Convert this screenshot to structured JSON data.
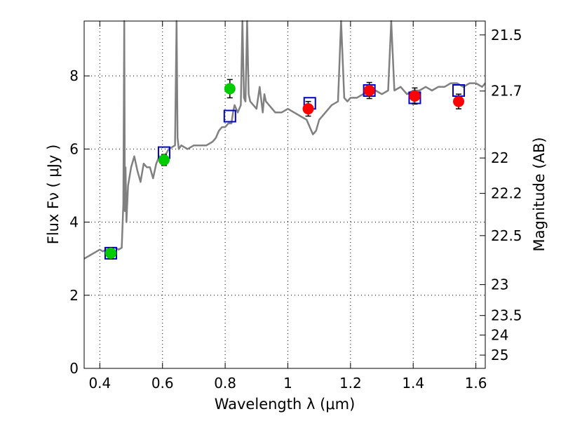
{
  "chart_data": {
    "type": "scatter",
    "xlabel": "Wavelength  λ (μm)",
    "ylabel": "Flux  Fν  ( μJy )",
    "y2label": "Magnitude (AB)",
    "xlim": [
      0.35,
      1.63
    ],
    "ylim": [
      0,
      9.5
    ],
    "grid": true,
    "x_ticks": [
      0.4,
      0.6,
      0.8,
      1.0,
      1.2,
      1.4,
      1.6
    ],
    "x_tick_labels": [
      "0.4",
      "0.6",
      "0.8",
      "1",
      "1.2",
      "1.4",
      "1.6"
    ],
    "y_ticks": [
      0,
      2,
      4,
      6,
      8
    ],
    "y_tick_labels": [
      "0",
      "2",
      "4",
      "6",
      "8"
    ],
    "y2_tick_labels": [
      "21.5",
      "21.7",
      "22",
      "22.2",
      "22.5",
      "23",
      "23.5",
      "24",
      "25"
    ],
    "colors": {
      "model": "#808080",
      "template_box": "#0000cc",
      "optical": "#00cc00",
      "nir": "#ff0000",
      "errorbar": "#000000"
    },
    "model_spectrum": {
      "x": [
        0.35,
        0.36,
        0.37,
        0.38,
        0.39,
        0.4,
        0.41,
        0.42,
        0.43,
        0.44,
        0.45,
        0.46,
        0.47,
        0.475,
        0.478,
        0.48,
        0.482,
        0.485,
        0.49,
        0.5,
        0.51,
        0.52,
        0.53,
        0.54,
        0.55,
        0.56,
        0.57,
        0.58,
        0.59,
        0.6,
        0.62,
        0.64,
        0.645,
        0.648,
        0.652,
        0.66,
        0.68,
        0.7,
        0.72,
        0.74,
        0.76,
        0.77,
        0.78,
        0.79,
        0.8,
        0.81,
        0.82,
        0.825,
        0.83,
        0.84,
        0.85,
        0.855,
        0.86,
        0.865,
        0.87,
        0.875,
        0.88,
        0.89,
        0.9,
        0.91,
        0.92,
        0.925,
        0.93,
        0.94,
        0.95,
        0.96,
        0.98,
        1.0,
        1.02,
        1.04,
        1.06,
        1.08,
        1.09,
        1.1,
        1.12,
        1.14,
        1.16,
        1.17,
        1.18,
        1.19,
        1.2,
        1.22,
        1.24,
        1.26,
        1.28,
        1.3,
        1.32,
        1.33,
        1.34,
        1.36,
        1.38,
        1.4,
        1.42,
        1.44,
        1.46,
        1.48,
        1.5,
        1.52,
        1.54,
        1.56,
        1.58,
        1.6,
        1.62,
        1.63
      ],
      "y": [
        3.0,
        3.05,
        3.1,
        3.15,
        3.2,
        3.25,
        3.2,
        3.25,
        3.25,
        3.3,
        3.3,
        3.25,
        3.3,
        4.5,
        9.5,
        4.3,
        5.5,
        4.0,
        5.0,
        5.5,
        5.8,
        5.4,
        5.1,
        5.6,
        5.5,
        5.5,
        5.2,
        5.6,
        5.8,
        5.7,
        6.0,
        6.1,
        9.5,
        6.3,
        6.0,
        6.1,
        6.0,
        6.1,
        6.1,
        6.1,
        6.2,
        6.3,
        6.5,
        6.6,
        6.6,
        6.7,
        6.7,
        7.0,
        7.2,
        7.0,
        7.2,
        9.5,
        7.4,
        7.3,
        9.5,
        7.5,
        7.3,
        7.2,
        7.1,
        7.7,
        7.0,
        7.5,
        7.3,
        7.2,
        7.1,
        7.0,
        7.0,
        7.1,
        7.0,
        6.9,
        6.8,
        6.4,
        6.5,
        6.8,
        7.0,
        7.2,
        7.3,
        9.5,
        7.4,
        7.3,
        7.4,
        7.4,
        7.5,
        7.5,
        7.6,
        7.5,
        7.6,
        9.5,
        7.6,
        7.7,
        7.5,
        7.6,
        7.6,
        7.7,
        7.6,
        7.7,
        7.7,
        7.8,
        7.8,
        7.7,
        7.8,
        7.8,
        7.7,
        7.8
      ]
    },
    "series": [
      {
        "name": "model_photometry",
        "marker": "square",
        "x": [
          0.435,
          0.605,
          0.815,
          1.07,
          1.26,
          1.405,
          1.545
        ],
        "y": [
          3.15,
          5.9,
          6.9,
          7.25,
          7.6,
          7.4,
          7.6
        ]
      },
      {
        "name": "optical_observed",
        "marker": "circle",
        "x": [
          0.435,
          0.605,
          0.815
        ],
        "y": [
          3.15,
          5.7,
          7.65
        ],
        "yerr": [
          0.15,
          0.15,
          0.25
        ]
      },
      {
        "name": "nir_observed",
        "marker": "circle",
        "x": [
          1.065,
          1.26,
          1.405,
          1.545
        ],
        "y": [
          7.1,
          7.6,
          7.45,
          7.3
        ],
        "yerr": [
          0.2,
          0.22,
          0.22,
          0.2
        ]
      }
    ]
  }
}
